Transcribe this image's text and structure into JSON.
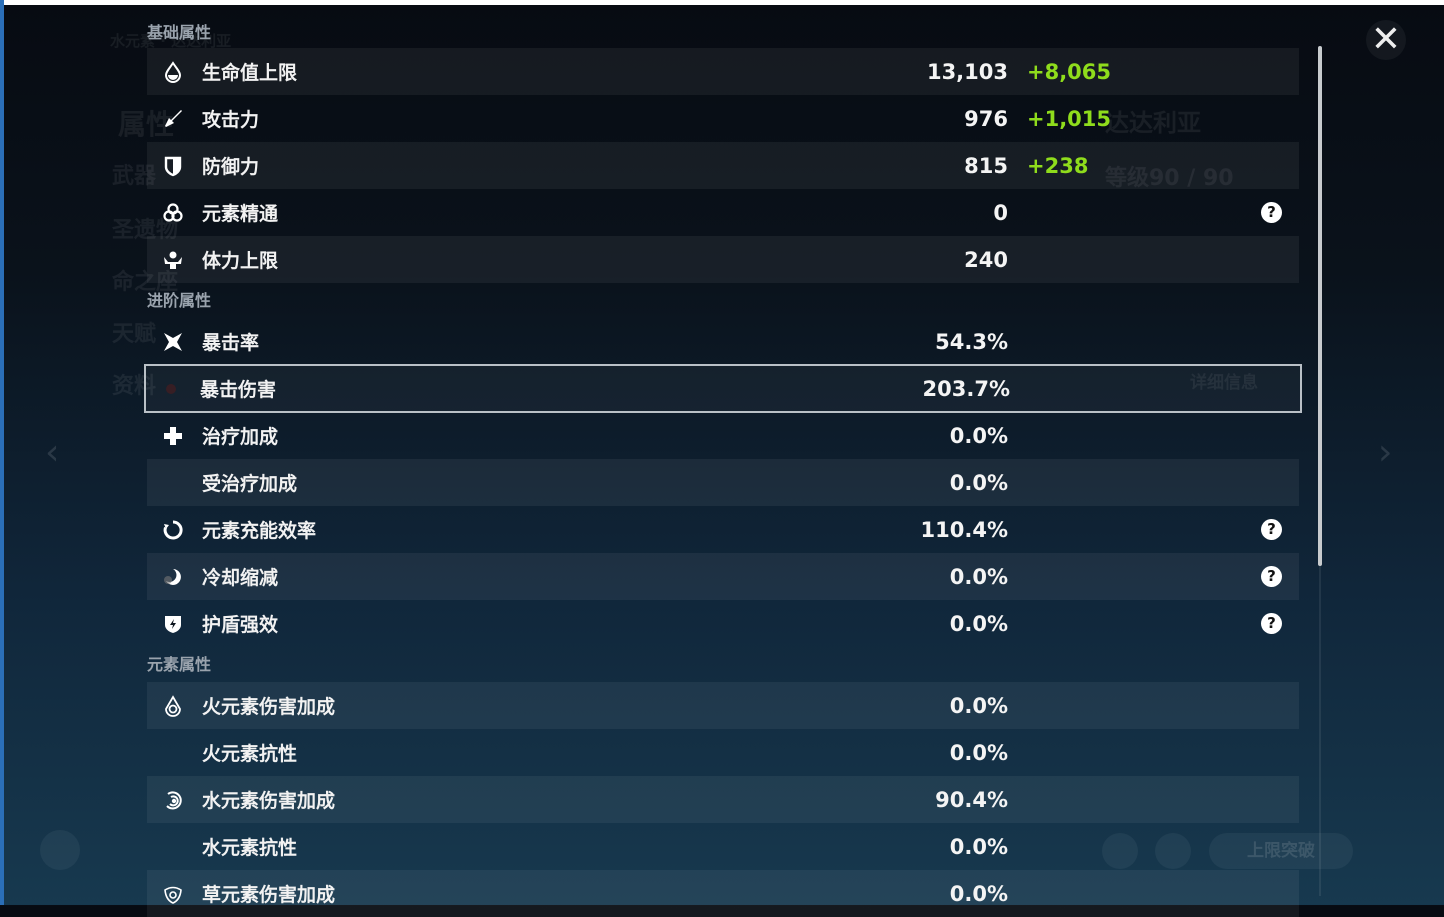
{
  "background": {
    "character_name": "达达利亚",
    "level": "等级90 / 90",
    "detail_button": "详细信息",
    "ascend_button": "上限突破",
    "side_title": "水元素 · 达达利亚",
    "side_menu": [
      "属性",
      "武器",
      "圣遗物",
      "命之座",
      "天赋",
      "资料"
    ]
  },
  "colors": {
    "bonus": "#8fdc1c",
    "selected_border": "#b9c0c6"
  },
  "close_icon": "close-icon",
  "sections": [
    {
      "title": "基础属性",
      "rows": [
        {
          "icon": "hp-drop-icon",
          "label": "生命值上限",
          "value": "13,103",
          "bonus": "+8,065"
        },
        {
          "icon": "sword-icon",
          "label": "攻击力",
          "value": "976",
          "bonus": "+1,015"
        },
        {
          "icon": "shield-icon",
          "label": "防御力",
          "value": "815",
          "bonus": "+238"
        },
        {
          "icon": "elemental-mastery-icon",
          "label": "元素精通",
          "value": "0",
          "help": "?"
        },
        {
          "icon": "stamina-icon",
          "label": "体力上限",
          "value": "240"
        }
      ]
    },
    {
      "title": "进阶属性",
      "rows": [
        {
          "icon": "crit-rate-icon",
          "label": "暴击率",
          "value": "54.3%"
        },
        {
          "icon": "crit-dmg-icon",
          "label": "暴击伤害",
          "value": "203.7%",
          "selected": true
        },
        {
          "icon": "healing-cross-icon",
          "label": "治疗加成",
          "value": "0.0%"
        },
        {
          "icon": "",
          "label": "受治疗加成",
          "value": "0.0%"
        },
        {
          "icon": "energy-recharge-icon",
          "label": "元素充能效率",
          "value": "110.4%",
          "help": "?"
        },
        {
          "icon": "cooldown-icon",
          "label": "冷却缩减",
          "value": "0.0%",
          "help": "?"
        },
        {
          "icon": "shield-strength-icon",
          "label": "护盾强效",
          "value": "0.0%",
          "help": "?"
        }
      ]
    },
    {
      "title": "元素属性",
      "rows": [
        {
          "icon": "pyro-icon",
          "label": "火元素伤害加成",
          "value": "0.0%"
        },
        {
          "icon": "",
          "label": "火元素抗性",
          "value": "0.0%"
        },
        {
          "icon": "hydro-icon",
          "label": "水元素伤害加成",
          "value": "90.4%"
        },
        {
          "icon": "",
          "label": "水元素抗性",
          "value": "0.0%"
        },
        {
          "icon": "dendro-icon",
          "label": "草元素伤害加成",
          "value": "0.0%"
        }
      ]
    }
  ]
}
